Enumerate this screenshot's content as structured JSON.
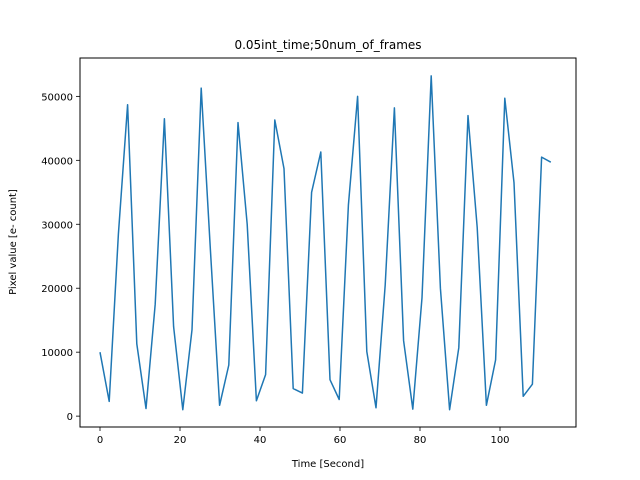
{
  "chart_data": {
    "type": "line",
    "title": "0.05int_time;50num_of_frames",
    "xlabel": "Time [Second]",
    "ylabel": "Pixel value [e- count]",
    "xlim": [
      -5,
      119
    ],
    "ylim": [
      -1700,
      56000
    ],
    "xticks": [
      0,
      20,
      40,
      60,
      80,
      100
    ],
    "yticks": [
      0,
      10000,
      20000,
      30000,
      40000,
      50000
    ],
    "grid": false,
    "series": [
      {
        "color": "#1f77b4",
        "x": [
          0,
          2.3,
          4.6,
          6.9,
          9.2,
          11.5,
          13.8,
          16.1,
          18.4,
          20.7,
          23.0,
          25.3,
          27.6,
          29.9,
          32.2,
          34.5,
          36.8,
          39.1,
          41.4,
          43.7,
          46.0,
          48.3,
          50.6,
          52.9,
          55.2,
          57.5,
          59.8,
          62.1,
          64.4,
          66.7,
          69.0,
          71.3,
          73.6,
          75.9,
          78.2,
          80.5,
          82.8,
          85.1,
          87.4,
          89.7,
          92.0,
          94.3,
          96.6,
          98.9,
          101.2,
          103.5,
          105.8,
          108.1,
          110.4,
          112.7
        ],
        "y": [
          10000,
          2300,
          28500,
          48700,
          11300,
          1200,
          17500,
          46500,
          14000,
          1000,
          13500,
          51300,
          26000,
          1700,
          8000,
          45900,
          30000,
          2400,
          6500,
          46300,
          38700,
          4300,
          3600,
          35000,
          41300,
          5700,
          2600,
          33000,
          50000,
          10100,
          1300,
          20500,
          48200,
          11800,
          1100,
          18500,
          53200,
          20000,
          1000,
          10700,
          47000,
          29500,
          1700,
          8800,
          49700,
          36500,
          3100,
          5000,
          40500,
          39700
        ]
      }
    ]
  }
}
